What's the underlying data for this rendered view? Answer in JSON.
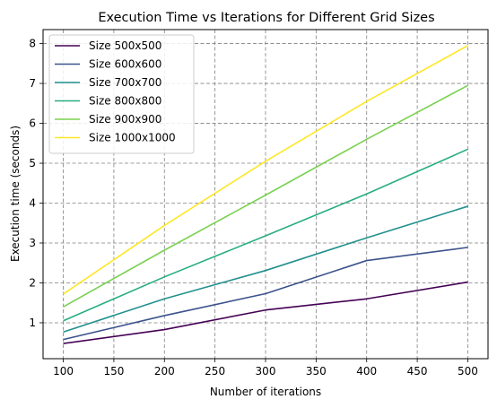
{
  "chart_data": {
    "type": "line",
    "title": "Execution Time vs Iterations for Different Grid Sizes",
    "xlabel": "Number of iterations",
    "ylabel": "Execution time (seconds)",
    "x": [
      100,
      200,
      300,
      400,
      500
    ],
    "xlim": [
      80,
      520
    ],
    "ylim": [
      0.1,
      8.35
    ],
    "xticks": [
      100,
      150,
      200,
      250,
      300,
      350,
      400,
      450,
      500
    ],
    "yticks": [
      1,
      2,
      3,
      4,
      5,
      6,
      7,
      8
    ],
    "grid": true,
    "legend_position": "top-left",
    "series": [
      {
        "name": "Size 500x500",
        "color": "#440154",
        "values": [
          0.48,
          0.83,
          1.32,
          1.6,
          2.02
        ]
      },
      {
        "name": "Size 600x600",
        "color": "#3b528b",
        "values": [
          0.58,
          1.18,
          1.73,
          2.56,
          2.89
        ]
      },
      {
        "name": "Size 700x700",
        "color": "#21908d",
        "values": [
          0.77,
          1.6,
          2.31,
          3.13,
          3.92
        ]
      },
      {
        "name": "Size 800x800",
        "color": "#27ad81",
        "values": [
          1.05,
          2.15,
          3.18,
          4.23,
          5.35
        ]
      },
      {
        "name": "Size 900x900",
        "color": "#7ad151",
        "values": [
          1.4,
          2.82,
          4.2,
          5.6,
          6.95
        ]
      },
      {
        "name": "Size 1000x1000",
        "color": "#fde725",
        "values": [
          1.72,
          3.44,
          5.05,
          6.55,
          7.95
        ]
      }
    ]
  }
}
